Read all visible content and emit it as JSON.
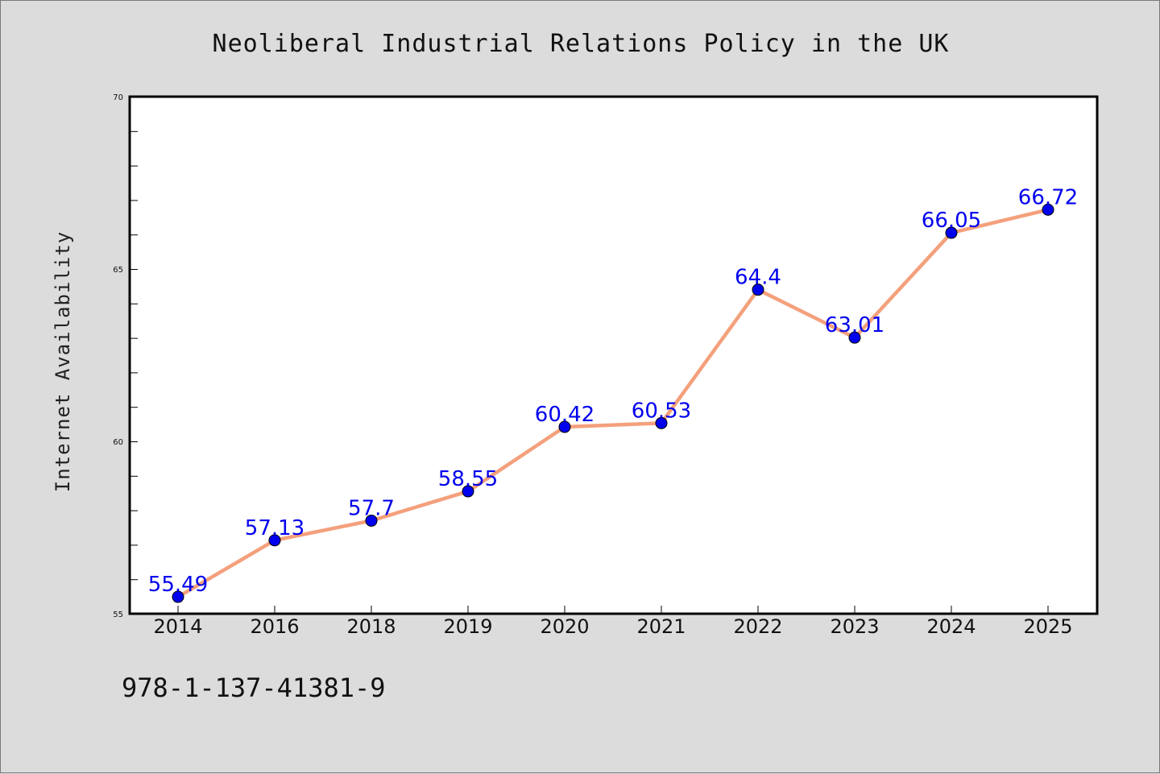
{
  "chart_data": {
    "type": "line",
    "title": "Neoliberal Industrial Relations Policy in the UK",
    "xlabel": "",
    "ylabel": "Internet Availability",
    "categories": [
      "2014",
      "2016",
      "2018",
      "2019",
      "2020",
      "2021",
      "2022",
      "2023",
      "2024",
      "2025"
    ],
    "values": [
      55.49,
      57.13,
      57.7,
      58.55,
      60.42,
      60.53,
      64.4,
      63.01,
      66.05,
      66.72
    ],
    "data_labels": [
      "55.49",
      "57.13",
      "57.7",
      "58.55",
      "60.42",
      "60.53",
      "64.4",
      "63.01",
      "66.05",
      "66.72"
    ],
    "ylim": [
      55,
      70
    ],
    "yticks": [
      55,
      60,
      65,
      70
    ],
    "grid": false,
    "line_color": "#f4a07c",
    "marker_color": "#0000ee",
    "label_color": "#0000ee",
    "background_color": "#dcdcdc",
    "plot_background": "#ffffff"
  },
  "footer": {
    "isbn": "978-1-137-41381-9"
  }
}
